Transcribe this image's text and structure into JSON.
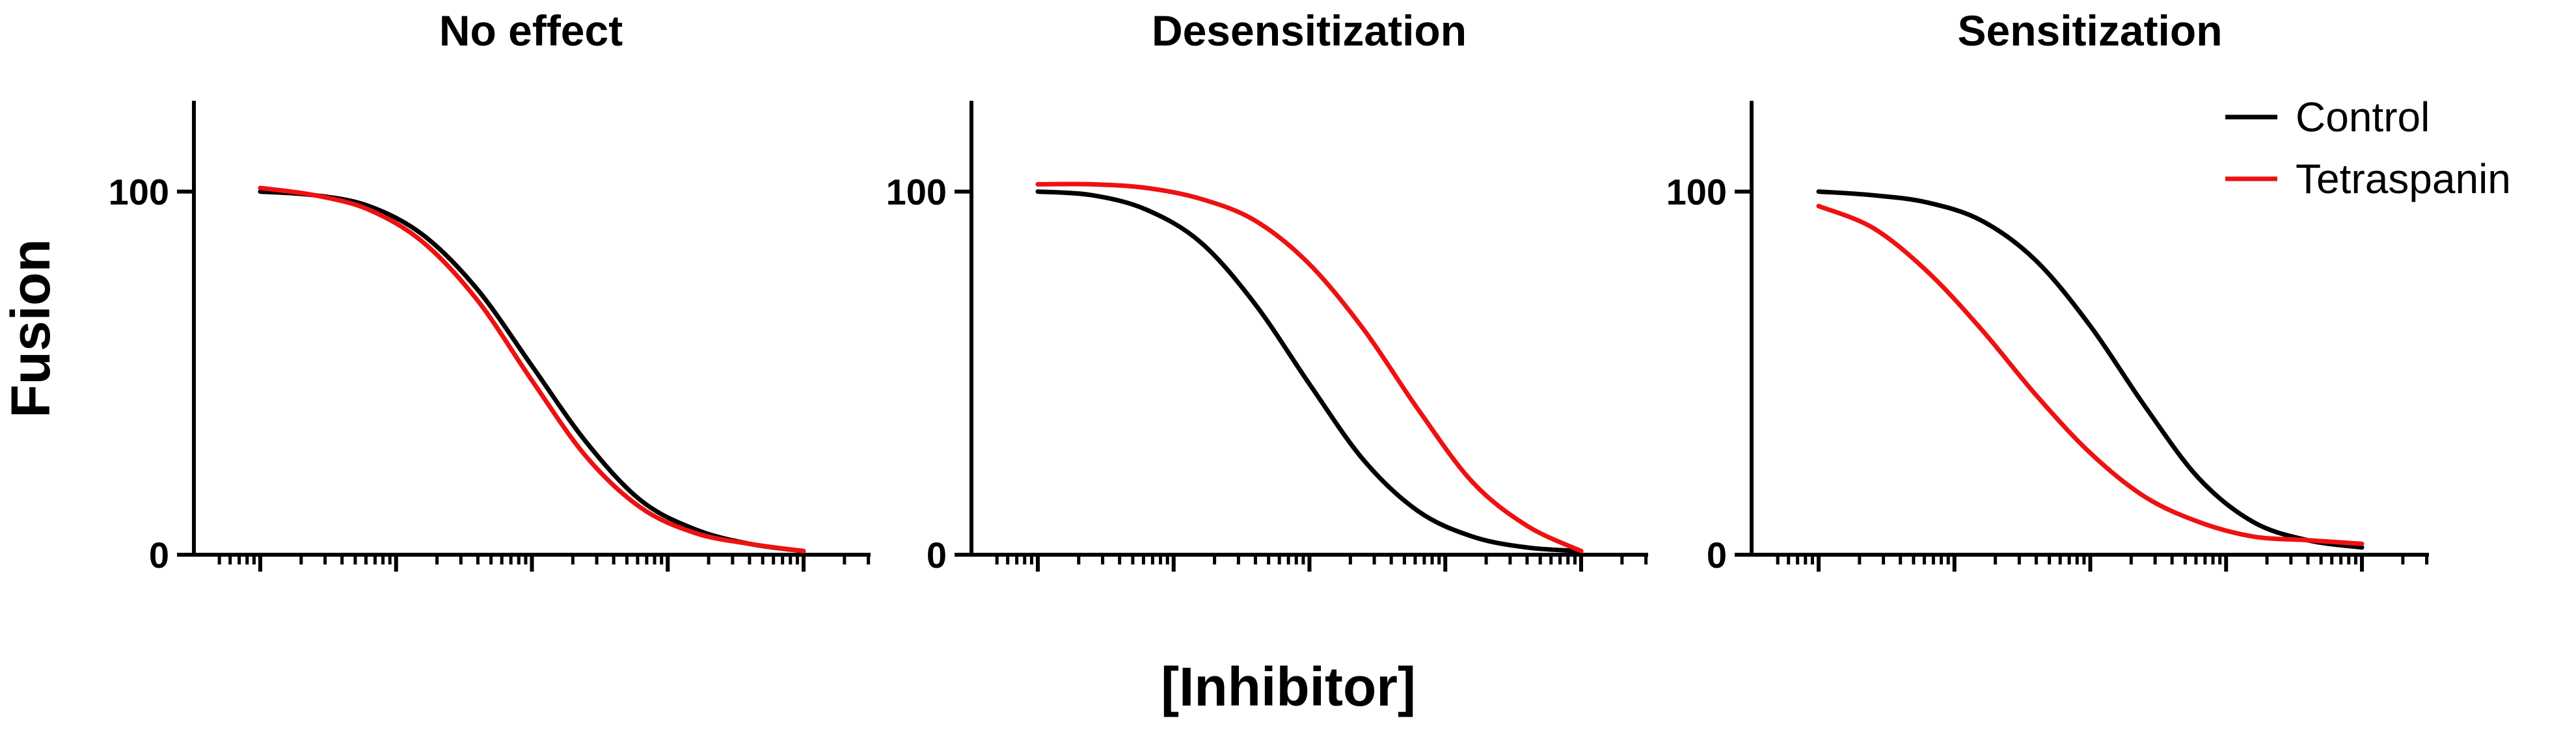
{
  "figure": {
    "ylabel": "Fusion",
    "xlabel": "[Inhibitor]"
  },
  "legend": {
    "items": [
      {
        "label": "Control",
        "color": "#000000"
      },
      {
        "label": "Tetraspanin",
        "color": "#ee1111"
      }
    ],
    "placement": "top-right"
  },
  "chart_data": [
    {
      "type": "line",
      "title": "No effect",
      "xscale": "log",
      "x_range": [
        0,
        1
      ],
      "ylim": [
        0,
        125
      ],
      "yticks": [
        0,
        100
      ],
      "grid": false,
      "series": [
        {
          "name": "Control",
          "color": "#000000",
          "x": [
            0.0,
            0.1,
            0.2,
            0.3,
            0.4,
            0.5,
            0.6,
            0.7,
            0.8,
            0.9,
            1.0
          ],
          "values": [
            100,
            99,
            96,
            88,
            73,
            52,
            31,
            15,
            7,
            3,
            1
          ]
        },
        {
          "name": "Tetraspanin",
          "color": "#ee1111",
          "x": [
            0.0,
            0.1,
            0.2,
            0.3,
            0.4,
            0.5,
            0.6,
            0.7,
            0.8,
            0.9,
            1.0
          ],
          "values": [
            101,
            99,
            95,
            86,
            70,
            48,
            27,
            13,
            6,
            3,
            1
          ]
        }
      ]
    },
    {
      "type": "line",
      "title": "Desensitization",
      "xscale": "log",
      "x_range": [
        0,
        1
      ],
      "ylim": [
        0,
        125
      ],
      "yticks": [
        0,
        100
      ],
      "grid": false,
      "series": [
        {
          "name": "Control",
          "color": "#000000",
          "x": [
            0.0,
            0.1,
            0.2,
            0.3,
            0.4,
            0.5,
            0.6,
            0.7,
            0.8,
            0.9,
            1.0
          ],
          "values": [
            100,
            99,
            95,
            86,
            69,
            47,
            26,
            12,
            5,
            2,
            1
          ]
        },
        {
          "name": "Tetraspanin",
          "color": "#ee1111",
          "x": [
            0.0,
            0.1,
            0.2,
            0.3,
            0.4,
            0.5,
            0.6,
            0.7,
            0.8,
            0.9,
            1.0
          ],
          "values": [
            102,
            102,
            101,
            98,
            92,
            80,
            62,
            40,
            20,
            8,
            1
          ]
        }
      ]
    },
    {
      "type": "line",
      "title": "Sensitization",
      "xscale": "log",
      "x_range": [
        0,
        1
      ],
      "ylim": [
        0,
        125
      ],
      "yticks": [
        0,
        100
      ],
      "grid": false,
      "series": [
        {
          "name": "Control",
          "color": "#000000",
          "x": [
            0.0,
            0.1,
            0.2,
            0.3,
            0.4,
            0.5,
            0.6,
            0.7,
            0.8,
            0.9,
            1.0
          ],
          "values": [
            100,
            99,
            97,
            92,
            81,
            63,
            41,
            21,
            9,
            4,
            2
          ]
        },
        {
          "name": "Tetraspanin",
          "color": "#ee1111",
          "x": [
            0.0,
            0.1,
            0.2,
            0.3,
            0.4,
            0.5,
            0.6,
            0.7,
            0.8,
            0.9,
            1.0
          ],
          "values": [
            96,
            90,
            78,
            62,
            44,
            28,
            16,
            9,
            5,
            4,
            3
          ]
        }
      ]
    }
  ]
}
